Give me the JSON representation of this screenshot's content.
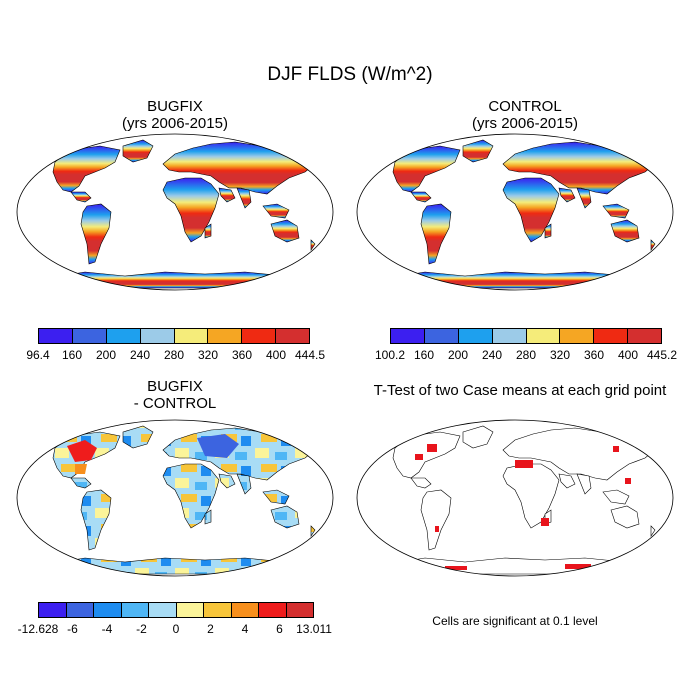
{
  "title": "DJF FLDS (W/m^2)",
  "panels": {
    "bugfix": {
      "title": "BUGFIX",
      "subtitle": "(yrs 2006-2015)"
    },
    "control": {
      "title": "CONTROL",
      "subtitle": "(yrs 2006-2015)"
    },
    "diff": {
      "title": "BUGFIX",
      "subtitle": "- CONTROL"
    },
    "ttest": {
      "title": "T-Test of two Case means at each grid point"
    }
  },
  "colorbars": {
    "bugfix": {
      "colors": [
        "#3c1ff0",
        "#3c64e0",
        "#1ea0ee",
        "#9ccbe8",
        "#f5ec7a",
        "#f5a623",
        "#ef2a12",
        "#d42f2f"
      ],
      "labels": [
        "96.4",
        "160",
        "200",
        "240",
        "280",
        "320",
        "360",
        "400",
        "444.5"
      ]
    },
    "control": {
      "colors": [
        "#3c1ff0",
        "#3c64e0",
        "#1ea0ee",
        "#9ccbe8",
        "#f5ec7a",
        "#f5a623",
        "#ef2a12",
        "#d42f2f"
      ],
      "labels": [
        "100.2",
        "160",
        "200",
        "240",
        "280",
        "320",
        "360",
        "400",
        "445.2"
      ]
    },
    "diff": {
      "colors": [
        "#3c1ff0",
        "#3c64e0",
        "#1e8cf0",
        "#4fb6f5",
        "#a8dcf5",
        "#fbf49a",
        "#f7c53a",
        "#f78f1c",
        "#ef1c1c",
        "#d42f2f"
      ],
      "labels": [
        "-12.628",
        "-6",
        "-4",
        "-2",
        "0",
        "2",
        "4",
        "6",
        "13.011"
      ]
    }
  },
  "note": "Cells are significant at 0.1 level"
}
